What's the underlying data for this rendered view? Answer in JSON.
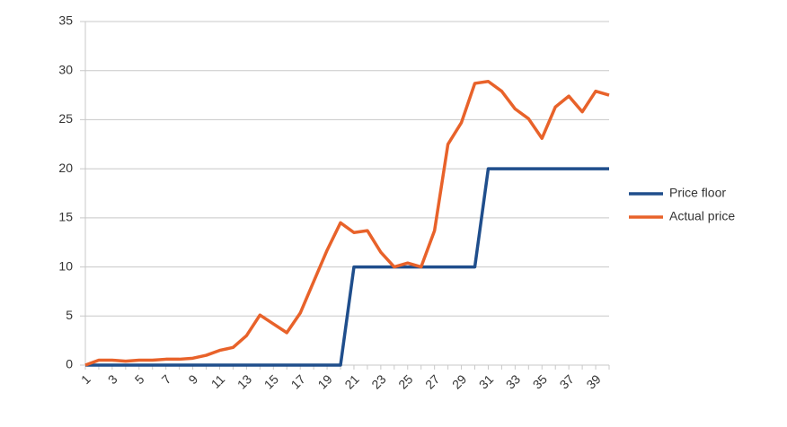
{
  "chart_data": {
    "type": "line",
    "categories": [
      1,
      null,
      3,
      null,
      5,
      null,
      7,
      null,
      9,
      null,
      11,
      null,
      13,
      null,
      15,
      null,
      17,
      null,
      19,
      null,
      21,
      null,
      23,
      null,
      25,
      null,
      27,
      null,
      29,
      null,
      31,
      null,
      33,
      null,
      35,
      null,
      37,
      null,
      39,
      null
    ],
    "series": [
      {
        "name": "Price floor",
        "color": "#1f4e8c",
        "values": [
          0,
          0,
          0,
          0,
          0,
          0,
          0,
          0,
          0,
          0,
          0,
          0,
          0,
          0,
          0,
          0,
          0,
          0,
          0,
          0,
          10,
          10,
          10,
          10,
          10,
          10,
          10,
          10,
          10,
          10,
          20,
          20,
          20,
          20,
          20,
          20,
          20,
          20,
          20,
          20
        ]
      },
      {
        "name": "Actual price",
        "color": "#e8622a",
        "values": [
          0,
          0.5,
          0.5,
          0.4,
          0.5,
          0.5,
          0.6,
          0.6,
          0.7,
          1.0,
          1.5,
          1.8,
          3.0,
          5.1,
          4.2,
          3.3,
          5.3,
          8.5,
          11.7,
          14.5,
          13.5,
          13.7,
          11.5,
          10.0,
          10.4,
          10.0,
          13.7,
          22.5,
          24.7,
          28.7,
          28.9,
          27.9,
          26.1,
          25.1,
          23.1,
          26.3,
          27.4,
          25.8,
          27.9,
          27.5
        ]
      }
    ],
    "ylim": [
      0,
      35
    ],
    "yticks": [
      0,
      5,
      10,
      15,
      20,
      25,
      30,
      35
    ],
    "grid": true,
    "legend": "right"
  }
}
